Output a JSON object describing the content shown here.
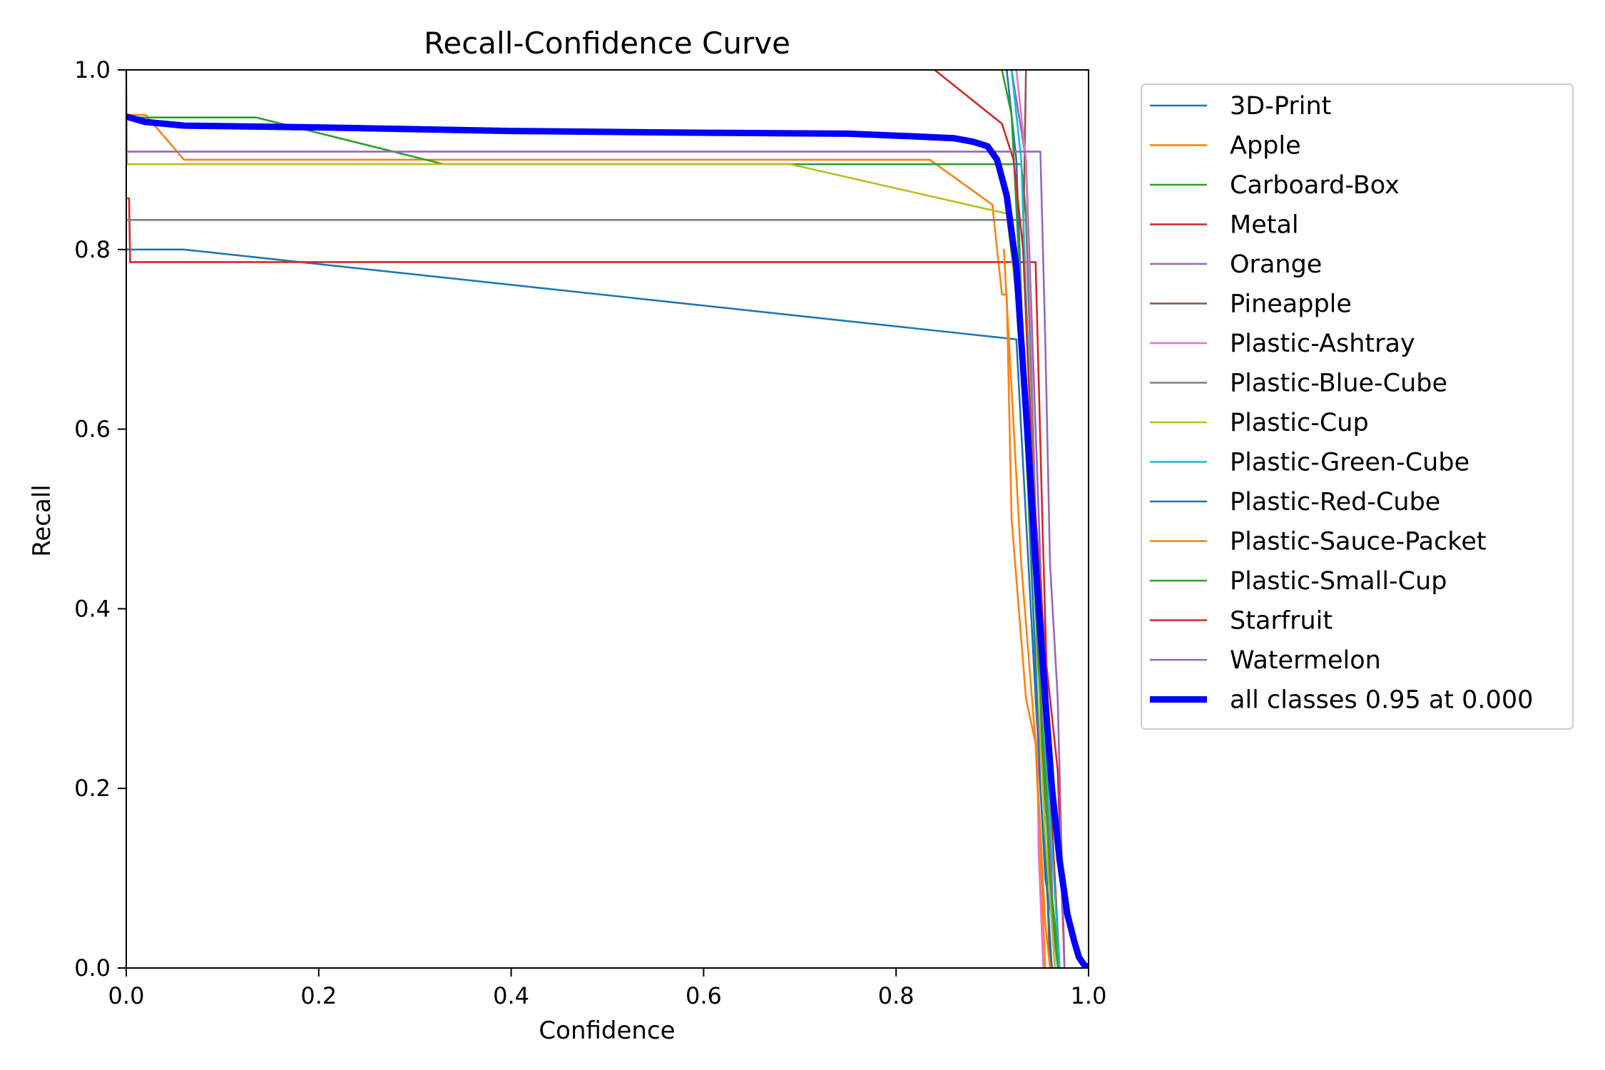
{
  "chart_data": {
    "type": "line",
    "title": "Recall-Confidence Curve",
    "xlabel": "Confidence",
    "ylabel": "Recall",
    "xlim": [
      0,
      1
    ],
    "ylim": [
      0,
      1
    ],
    "xticks": [
      "0.0",
      "0.2",
      "0.4",
      "0.6",
      "0.8",
      "1.0"
    ],
    "yticks": [
      "0.0",
      "0.2",
      "0.4",
      "0.6",
      "0.8",
      "1.0"
    ],
    "grid": false,
    "legend_position": "outside-right",
    "series": [
      {
        "name": "3D-Print",
        "color": "#1f77b4",
        "points": [
          [
            0,
            0.8
          ],
          [
            0.06,
            0.8
          ],
          [
            0.925,
            0.7
          ],
          [
            0.94,
            0.4
          ],
          [
            0.955,
            0.1
          ],
          [
            0.97,
            0
          ]
        ]
      },
      {
        "name": "Apple",
        "color": "#ff7f0e",
        "points": [
          [
            0,
            0.95
          ],
          [
            0.02,
            0.95
          ],
          [
            0.06,
            0.9
          ],
          [
            0.835,
            0.9
          ],
          [
            0.9,
            0.85
          ],
          [
            0.91,
            0.75
          ],
          [
            0.915,
            0.75
          ],
          [
            0.92,
            0.5
          ],
          [
            0.935,
            0.3
          ],
          [
            0.945,
            0.25
          ],
          [
            0.955,
            0
          ]
        ]
      },
      {
        "name": "Carboard-Box",
        "color": "#2ca02c",
        "points": [
          [
            0,
            0.947
          ],
          [
            0.135,
            0.947
          ],
          [
            0.33,
            0.895
          ],
          [
            0.93,
            0.895
          ],
          [
            0.935,
            0.84
          ],
          [
            0.945,
            0.5
          ],
          [
            0.96,
            0.1
          ],
          [
            0.97,
            0
          ]
        ]
      },
      {
        "name": "Metal",
        "color": "#d62728",
        "points": [
          [
            0,
            0.857
          ],
          [
            0.003,
            0.857
          ],
          [
            0.004,
            0.786
          ],
          [
            0.945,
            0.786
          ],
          [
            0.952,
            0.5
          ],
          [
            0.96,
            0.2
          ],
          [
            0.97,
            0
          ]
        ]
      },
      {
        "name": "Orange",
        "color": "#9467bd",
        "points": [
          [
            0.92,
            1.0
          ],
          [
            0.935,
            0.9
          ],
          [
            0.945,
            0.6
          ],
          [
            0.955,
            0.3
          ],
          [
            0.965,
            0
          ]
        ]
      },
      {
        "name": "Pineapple",
        "color": "#8c564b",
        "points": [
          [
            0.935,
            1.0
          ],
          [
            0.932,
            0.8
          ],
          [
            0.94,
            0.6
          ],
          [
            0.95,
            0.3
          ],
          [
            0.96,
            0
          ]
        ]
      },
      {
        "name": "Plastic-Ashtray",
        "color": "#e377c2",
        "points": [
          [
            0.925,
            1.0
          ],
          [
            0.935,
            0.9
          ],
          [
            0.945,
            0.5
          ],
          [
            0.948,
            0.13
          ],
          [
            0.953,
            0
          ]
        ]
      },
      {
        "name": "Plastic-Blue-Cube",
        "color": "#7f7f7f",
        "points": [
          [
            0,
            0.833
          ],
          [
            0.935,
            0.833
          ],
          [
            0.945,
            0.5
          ],
          [
            0.955,
            0.2
          ],
          [
            0.965,
            0
          ]
        ]
      },
      {
        "name": "Plastic-Cup",
        "color": "#bcbd22",
        "points": [
          [
            0,
            1.0
          ],
          [
            0.001,
            0.895
          ],
          [
            0.69,
            0.895
          ],
          [
            0.915,
            0.84
          ],
          [
            0.93,
            0.7
          ],
          [
            0.94,
            0.45
          ],
          [
            0.955,
            0.15
          ],
          [
            0.965,
            0
          ]
        ]
      },
      {
        "name": "Plastic-Green-Cube",
        "color": "#17becf",
        "points": [
          [
            0.92,
            1.0
          ],
          [
            0.93,
            0.9
          ],
          [
            0.94,
            0.6
          ],
          [
            0.955,
            0.25
          ],
          [
            0.97,
            0
          ]
        ]
      },
      {
        "name": "Plastic-Red-Cube",
        "color": "#1f77b4",
        "points": [
          [
            0.915,
            1.0
          ],
          [
            0.925,
            0.9
          ],
          [
            0.935,
            0.6
          ],
          [
            0.95,
            0.2
          ],
          [
            0.962,
            0
          ]
        ]
      },
      {
        "name": "Plastic-Sauce-Packet",
        "color": "#ff7f0e",
        "points": [
          [
            0.912,
            0.8
          ],
          [
            0.93,
            0.45
          ],
          [
            0.945,
            0.25
          ],
          [
            0.955,
            0.05
          ],
          [
            0.96,
            0
          ]
        ]
      },
      {
        "name": "Plastic-Small-Cup",
        "color": "#2ca02c",
        "points": [
          [
            0.91,
            1.0
          ],
          [
            0.92,
            0.95
          ],
          [
            0.932,
            0.7
          ],
          [
            0.945,
            0.4
          ],
          [
            0.96,
            0.1
          ],
          [
            0.968,
            0
          ]
        ]
      },
      {
        "name": "Starfruit",
        "color": "#d62728",
        "points": [
          [
            0.84,
            1.0
          ],
          [
            0.91,
            0.94
          ],
          [
            0.922,
            0.9
          ],
          [
            0.932,
            0.8
          ],
          [
            0.942,
            0.55
          ],
          [
            0.955,
            0.35
          ],
          [
            0.968,
            0.22
          ],
          [
            0.975,
            0
          ]
        ]
      },
      {
        "name": "Watermelon",
        "color": "#9467bd",
        "points": [
          [
            0,
            0.909
          ],
          [
            0.95,
            0.909
          ],
          [
            0.955,
            0.7
          ],
          [
            0.96,
            0.45
          ],
          [
            0.968,
            0.3
          ],
          [
            0.975,
            0
          ]
        ]
      },
      {
        "name": "all classes 0.95 at 0.000",
        "color": "#0000ff",
        "bold": true,
        "points": [
          [
            0,
            0.948
          ],
          [
            0.02,
            0.942
          ],
          [
            0.06,
            0.938
          ],
          [
            0.2,
            0.936
          ],
          [
            0.4,
            0.932
          ],
          [
            0.6,
            0.93
          ],
          [
            0.75,
            0.929
          ],
          [
            0.82,
            0.926
          ],
          [
            0.86,
            0.924
          ],
          [
            0.88,
            0.92
          ],
          [
            0.895,
            0.915
          ],
          [
            0.905,
            0.9
          ],
          [
            0.915,
            0.86
          ],
          [
            0.925,
            0.78
          ],
          [
            0.935,
            0.62
          ],
          [
            0.945,
            0.45
          ],
          [
            0.955,
            0.3
          ],
          [
            0.962,
            0.2
          ],
          [
            0.97,
            0.12
          ],
          [
            0.978,
            0.06
          ],
          [
            0.985,
            0.03
          ],
          [
            0.99,
            0.012
          ],
          [
            0.995,
            0.004
          ],
          [
            1.0,
            0.0
          ]
        ]
      }
    ]
  }
}
